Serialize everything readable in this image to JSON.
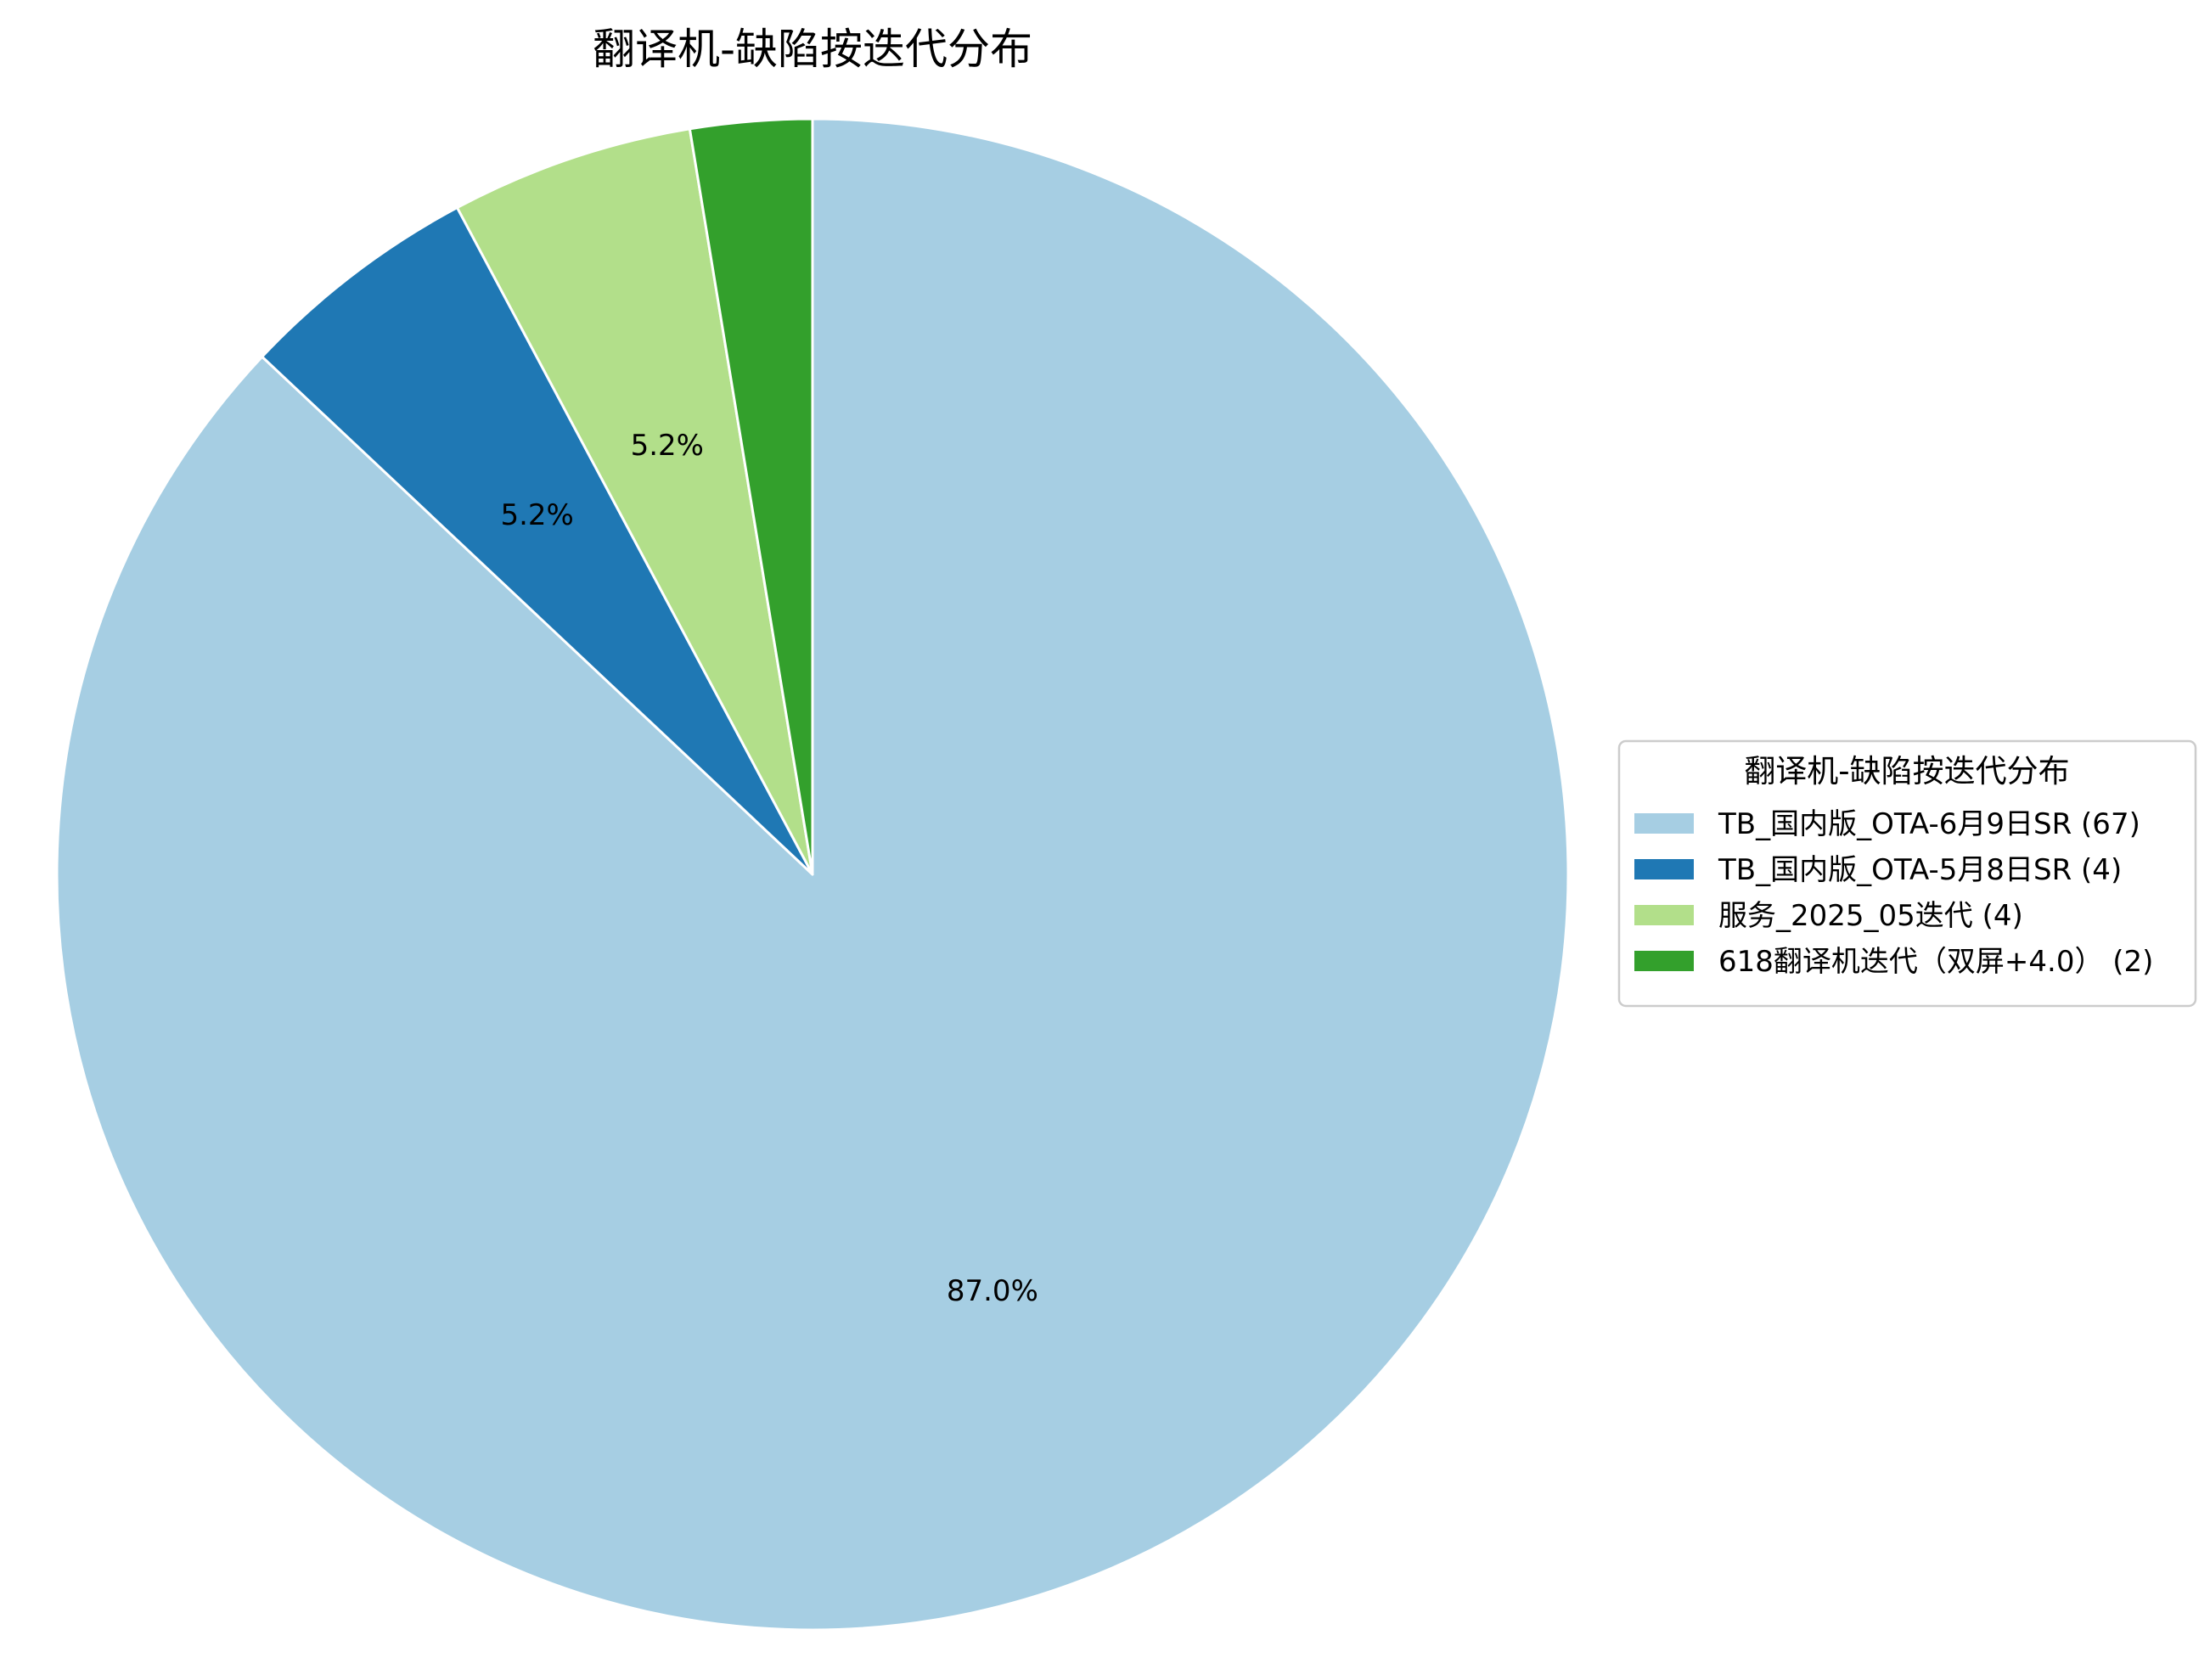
{
  "chart_data": {
    "type": "pie",
    "title": "翻译机-缺陷按迭代分布",
    "legend_title": "翻译机-缺陷按迭代分布",
    "legend_position": "center-right",
    "start_angle_deg": 90,
    "direction": "clockwise",
    "slices": [
      {
        "legend_label": "TB_国内版_OTA-6月9日SR (67)",
        "value": 67,
        "pct_label": "87.0%",
        "color": "#a6cee3"
      },
      {
        "legend_label": "TB_国内版_OTA-5月8日SR (4)",
        "value": 4,
        "pct_label": "5.2%",
        "color": "#1f78b4"
      },
      {
        "legend_label": "服务_2025_05迭代 (4)",
        "value": 4,
        "pct_label": "5.2%",
        "color": "#b2df8a"
      },
      {
        "legend_label": "618翻译机迭代（双屏+4.0） (2)",
        "value": 2,
        "pct_label": "",
        "color": "#33a02c"
      }
    ]
  }
}
